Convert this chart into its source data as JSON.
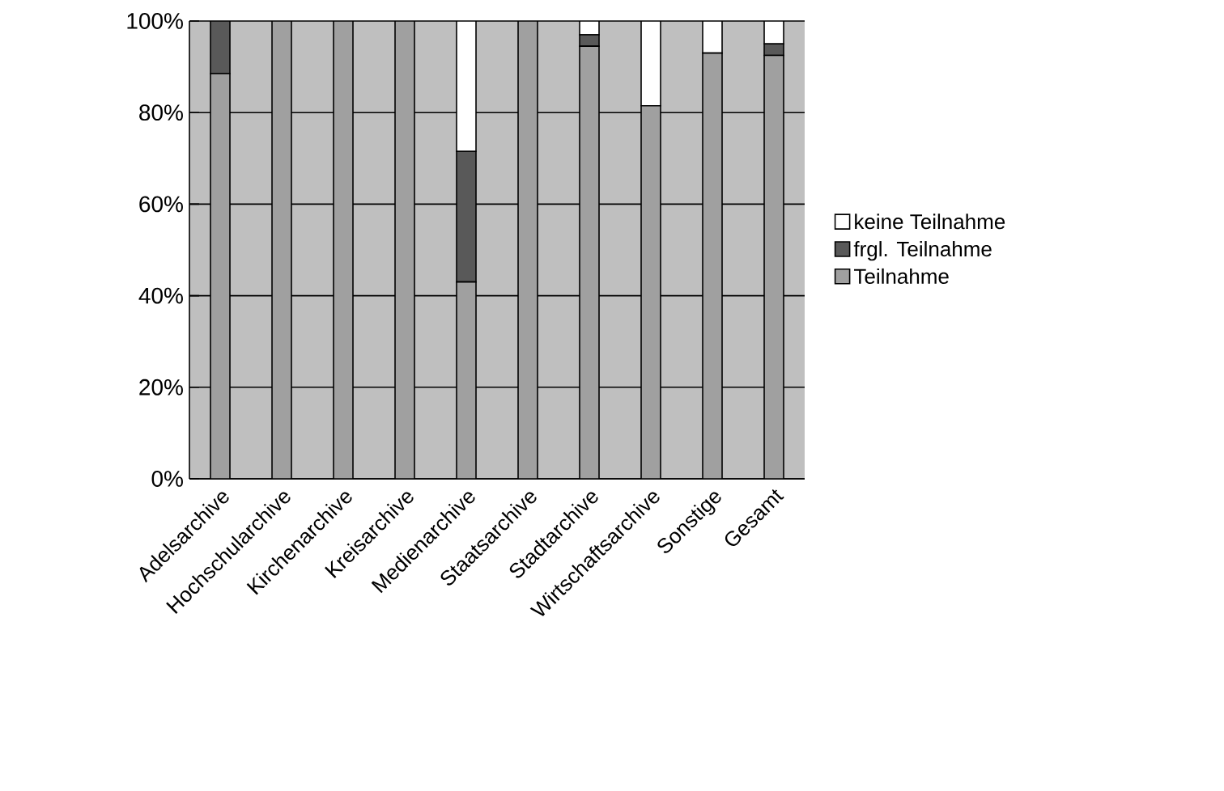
{
  "chart_data": {
    "type": "bar",
    "stacked": true,
    "categories": [
      "Adelsarchive",
      "Hochschularchive",
      "Kirchenarchive",
      "Kreisarchive",
      "Medienarchive",
      "Staatsarchive",
      "Stadtarchive",
      "Wirtschaftsarchive",
      "Sonstige",
      "Gesamt"
    ],
    "series": [
      {
        "name": "Teilnahme",
        "color": "#a0a0a0",
        "values": [
          88.5,
          100,
          100,
          100,
          43,
          100,
          94.5,
          81.5,
          93,
          92.5
        ]
      },
      {
        "name": "frgl. Teilnahme",
        "color": "#595959",
        "values": [
          11.5,
          0,
          0,
          0,
          28.5,
          0,
          2.5,
          0,
          0,
          2.5
        ]
      },
      {
        "name": "keine Teilnahme",
        "color": "#ffffff",
        "values": [
          0,
          0,
          0,
          0,
          28.5,
          0,
          3,
          18.5,
          7,
          5
        ]
      }
    ],
    "ylim": [
      0,
      100
    ],
    "yticks": [
      {
        "value": 0,
        "label": "0%"
      },
      {
        "value": 20,
        "label": "20%"
      },
      {
        "value": 40,
        "label": "40%"
      },
      {
        "value": 60,
        "label": "60%"
      },
      {
        "value": 80,
        "label": "80%"
      },
      {
        "value": 100,
        "label": "100%"
      }
    ],
    "grid": "y",
    "legend": "right"
  }
}
